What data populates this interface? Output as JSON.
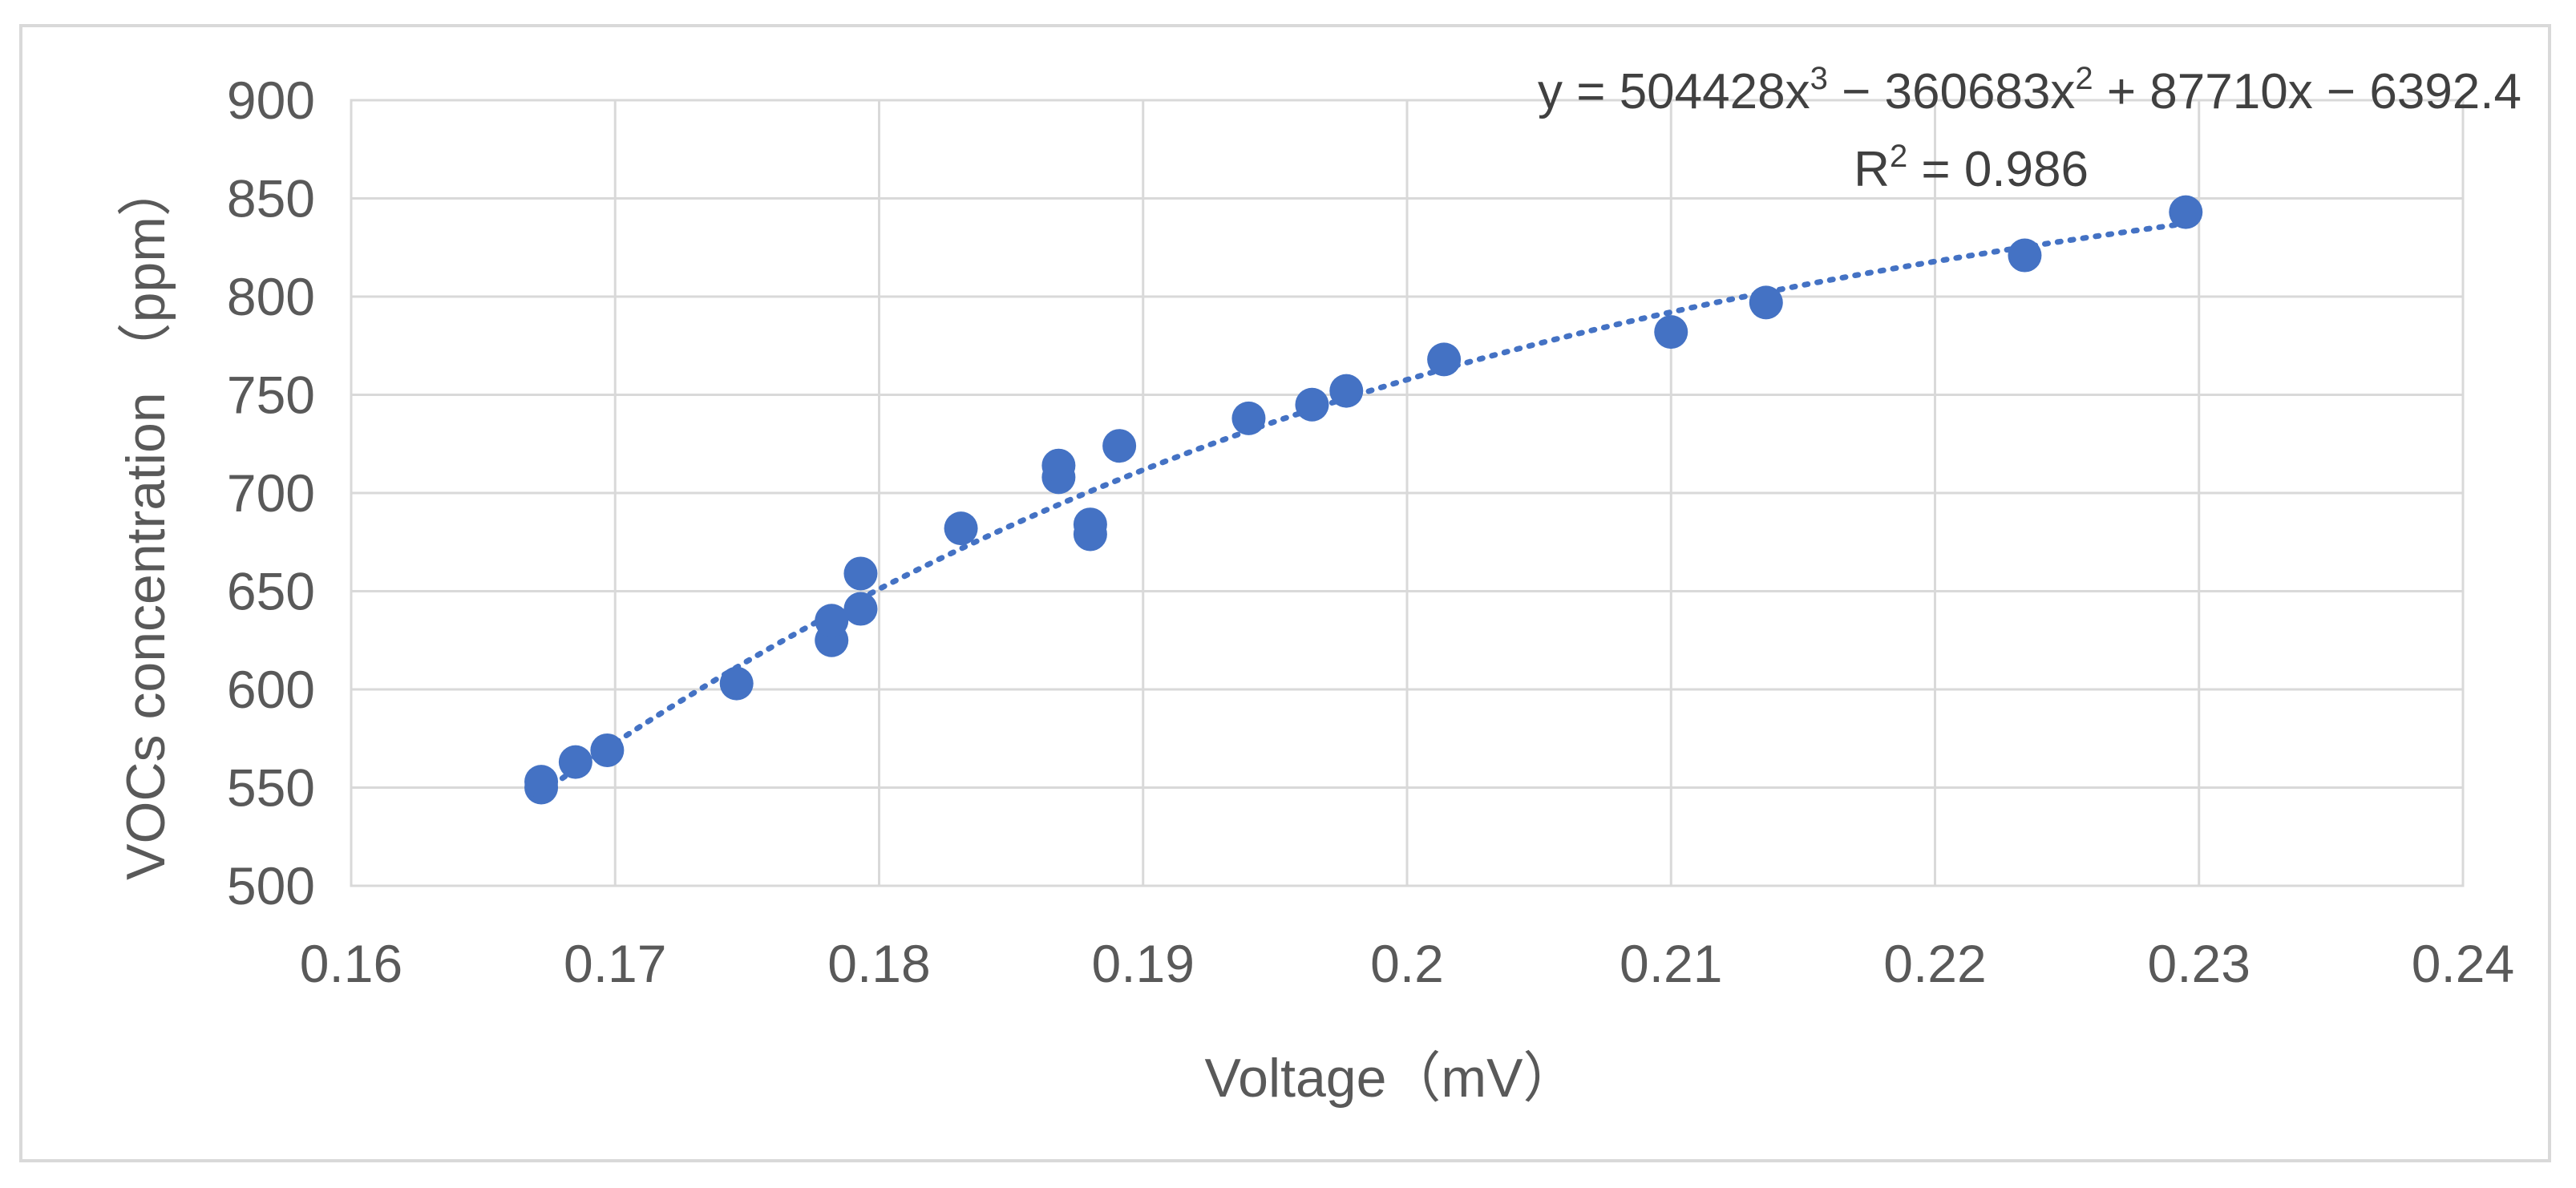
{
  "chart_data": {
    "type": "scatter",
    "title": "",
    "xlabel": "Voltage（mV）",
    "ylabel": "VOCs concentration （ppm）",
    "xlim": [
      0.16,
      0.24
    ],
    "ylim": [
      500,
      900
    ],
    "xticks": [
      0.16,
      0.17,
      0.18,
      0.19,
      0.2,
      0.21,
      0.22,
      0.23,
      0.24
    ],
    "xtick_labels": [
      "0.16",
      "0.17",
      "0.18",
      "0.19",
      "0.2",
      "0.21",
      "0.22",
      "0.23",
      "0.24"
    ],
    "yticks": [
      500,
      550,
      600,
      650,
      700,
      750,
      800,
      850,
      900
    ],
    "ytick_labels": [
      "500",
      "550",
      "600",
      "650",
      "700",
      "750",
      "800",
      "850",
      "900"
    ],
    "grid": true,
    "series": [
      {
        "name": "VOCs concentration",
        "color": "#4472c4",
        "points": [
          {
            "x": 0.1672,
            "y": 550
          },
          {
            "x": 0.1672,
            "y": 553
          },
          {
            "x": 0.1685,
            "y": 563
          },
          {
            "x": 0.1697,
            "y": 569
          },
          {
            "x": 0.1746,
            "y": 603
          },
          {
            "x": 0.1782,
            "y": 625
          },
          {
            "x": 0.1782,
            "y": 635
          },
          {
            "x": 0.1793,
            "y": 641
          },
          {
            "x": 0.1793,
            "y": 659
          },
          {
            "x": 0.1831,
            "y": 682
          },
          {
            "x": 0.1868,
            "y": 708
          },
          {
            "x": 0.1868,
            "y": 714
          },
          {
            "x": 0.188,
            "y": 679
          },
          {
            "x": 0.188,
            "y": 684
          },
          {
            "x": 0.1891,
            "y": 724
          },
          {
            "x": 0.194,
            "y": 738
          },
          {
            "x": 0.1964,
            "y": 745
          },
          {
            "x": 0.1977,
            "y": 752
          },
          {
            "x": 0.2014,
            "y": 768
          },
          {
            "x": 0.21,
            "y": 782
          },
          {
            "x": 0.2136,
            "y": 797
          },
          {
            "x": 0.2234,
            "y": 821
          },
          {
            "x": 0.2295,
            "y": 843
          }
        ]
      }
    ],
    "trendline": {
      "type": "polynomial",
      "order": 3,
      "coefficients": [
        504428,
        -360683,
        87710,
        -6392.4
      ],
      "x_range": [
        0.1672,
        0.2295
      ],
      "color": "#4472c4",
      "style": "dotted"
    },
    "annotations": {
      "equation": {
        "prefix": "y = 504428x",
        "exp1": "3",
        "mid1": " − 360683x",
        "exp2": "2",
        "mid2": " + 87710x − 6392.4"
      },
      "r_squared": {
        "prefix": "R",
        "exp": "2",
        "suffix": " = 0.986"
      }
    }
  }
}
